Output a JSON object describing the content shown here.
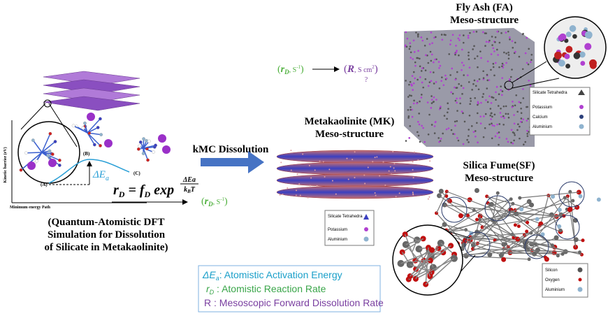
{
  "fly_ash": {
    "title": "Fly Ash (FA)",
    "subtitle": "Meso-structure",
    "legend": [
      "Silicate Tetrahedra",
      "Potassium",
      "Calcium",
      "Aluminium"
    ]
  },
  "rate_conversion": {
    "from": {
      "open": "(",
      "symbol": "r",
      "sub": "D",
      "unit": ", S",
      "exp": "-1",
      "close": ")"
    },
    "to": {
      "open": "(",
      "symbol": "R",
      "unit": ", S cm",
      "exp": "2",
      "close": ")"
    },
    "unknown": "?"
  },
  "metakaolinite": {
    "title": "Metakaolinite (MK)",
    "subtitle": "Meso-structure",
    "legend": [
      "Silicate Tetrahedra",
      "Potassium",
      "Aluminium"
    ]
  },
  "arrow_label": "kMC Dissolution",
  "silica_fume": {
    "title": "Silica Fume(SF)",
    "subtitle": "Meso-structure",
    "legend": [
      "Silicon",
      "Oxygen",
      "Aluminium"
    ]
  },
  "energy_plot": {
    "y_label": "Kinetic barrier (eV)",
    "x_label": "Minimum energy Path",
    "states": [
      "(A)",
      "(B)",
      "(C)"
    ],
    "barrier": {
      "symbol": "ΔE",
      "sub": "a"
    }
  },
  "equation": {
    "lhs": "r",
    "lhs_sub": "D",
    "eq": " = ",
    "f": "f",
    "f_sub": "D",
    "exp": " exp",
    "num": "ΔEa",
    "den": "k",
    "den_sub": "B",
    "den_end": "T"
  },
  "rate_output": {
    "open": "(",
    "symbol": "r",
    "sub": "D",
    "unit": ", S",
    "exp": "-1",
    "close": ")"
  },
  "dft_caption": [
    "(Quantum-Atomistic DFT",
    "Simulation for Dissolution",
    "of Silicate in Metakaolinite)"
  ],
  "glossary": [
    {
      "symbol": "ΔE",
      "sub": "a",
      "text": ": Atomistic Activation Energy"
    },
    {
      "symbol": "r",
      "sub": "D",
      "text": " : Atomistic Reaction Rate"
    },
    {
      "symbol": "R",
      "text": " : Mesoscopic Forward Dissolution Rate"
    }
  ]
}
